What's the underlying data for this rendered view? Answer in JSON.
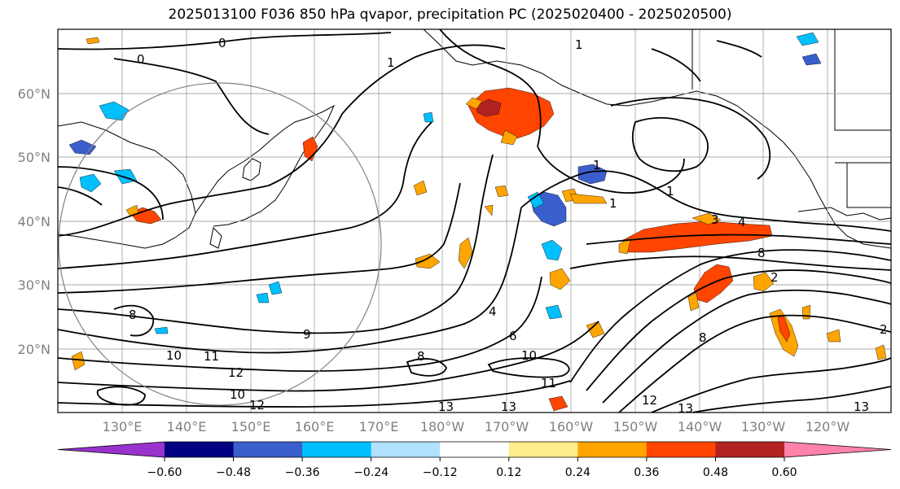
{
  "title": "2025013100 F036 850 hPa qvapor, precipitation PC (2025020400 - 2025020500)",
  "map": {
    "lat_labels": [
      "60°N",
      "50°N",
      "40°N",
      "30°N",
      "20°N"
    ],
    "lon_labels": [
      "130°E",
      "140°E",
      "150°E",
      "160°E",
      "170°E",
      "180°W",
      "170°W",
      "160°W",
      "150°W",
      "140°W",
      "130°W",
      "120°W"
    ],
    "grid": true,
    "contour_color": "#000000",
    "contour_labels": [
      "0",
      "0",
      "1",
      "1",
      "1",
      "1",
      "1",
      "3",
      "4",
      "8",
      "2",
      "8",
      "8",
      "9",
      "10",
      "11",
      "12",
      "10",
      "12",
      "13",
      "13",
      "12",
      "13",
      "6",
      "10",
      "11",
      "8",
      "4",
      "2",
      "13"
    ]
  },
  "colorbar": {
    "colors": [
      "#9932CC",
      "#000080",
      "#3A5FCD",
      "#00BFFF",
      "#B0E2FF",
      "#FFFFFF",
      "#FFEC8B",
      "#FFA500",
      "#FF4500",
      "#B22222",
      "#FF82AB"
    ],
    "ticks": [
      "−0.60",
      "−0.48",
      "−0.36",
      "−0.24",
      "−0.12",
      "0.12",
      "0.24",
      "0.36",
      "0.48",
      "0.60"
    ],
    "extend": "both"
  },
  "shaded_features": [
    {
      "level": 0.36,
      "color": "#FF4500",
      "location": "Gulf of Alaska north"
    },
    {
      "level": 0.48,
      "color": "#B22222",
      "location": "Gulf of Alaska north core"
    },
    {
      "level": 0.36,
      "color": "#FF4500",
      "location": "band near 38°N 150°W-135°W"
    },
    {
      "level": -0.36,
      "color": "#3A5FCD",
      "location": "near 40°N 160°W"
    },
    {
      "level": 0.36,
      "color": "#FF4500",
      "location": "near 32°N 140°W"
    },
    {
      "level": 0.36,
      "color": "#FF4500",
      "location": "near 42°N 138°E"
    }
  ]
}
